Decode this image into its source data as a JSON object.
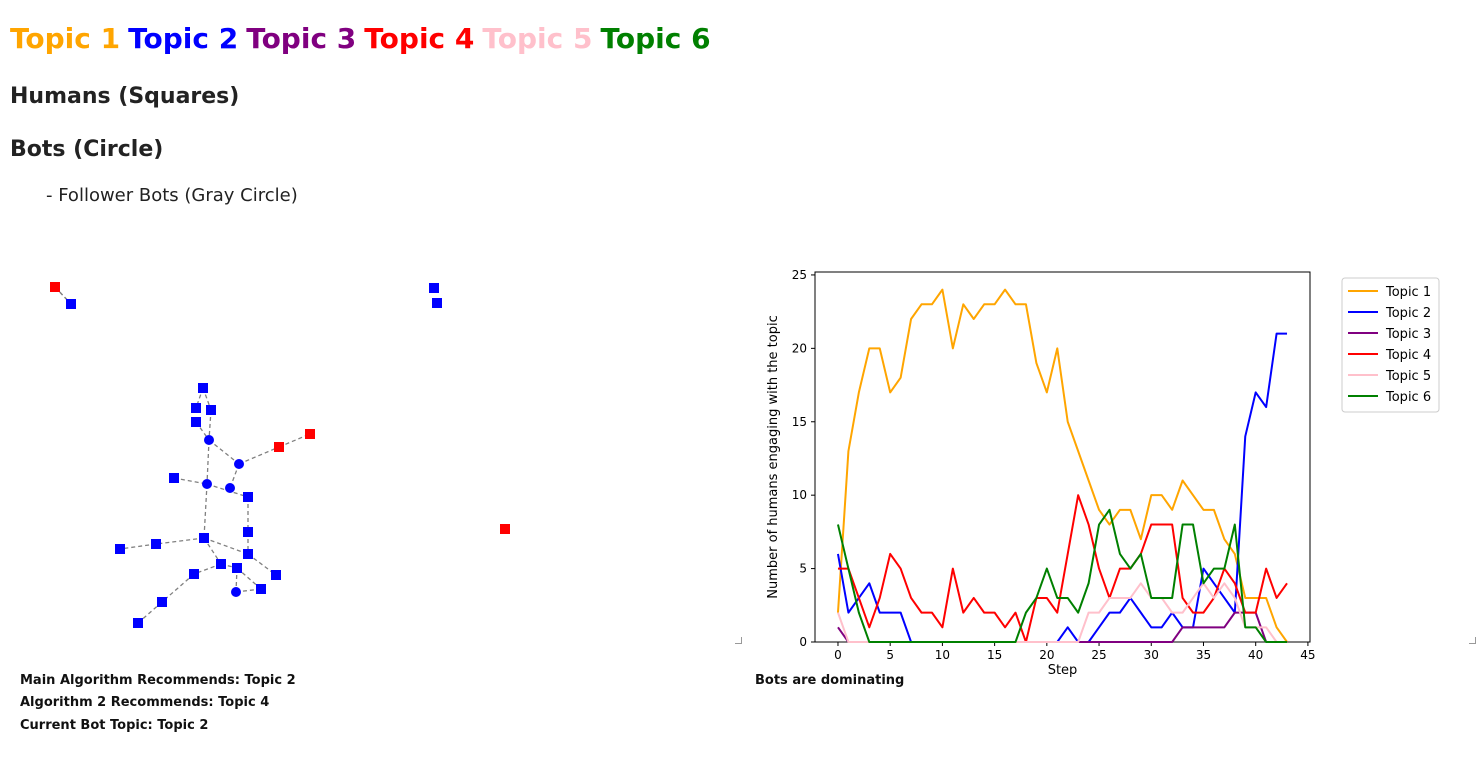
{
  "topics": [
    {
      "label": "Topic 1",
      "color": "#FFA500"
    },
    {
      "label": "Topic 2",
      "color": "#0000FF"
    },
    {
      "label": "Topic 3",
      "color": "#800080"
    },
    {
      "label": "Topic 4",
      "color": "#FF0000"
    },
    {
      "label": "Topic 5",
      "color": "#FFC0CB"
    },
    {
      "label": "Topic 6",
      "color": "#008000"
    }
  ],
  "headings": {
    "humans": "Humans (Squares)",
    "bots": "Bots (Circle)",
    "follower_bots": "- Follower Bots (Gray Circle)"
  },
  "status": {
    "main_algorithm": "Main Algorithm Recommends: Topic 2",
    "algorithm_2": "Algorithm 2 Recommends: Topic 4",
    "current_bot_topic": "Current Bot Topic: Topic 2",
    "dominance": "Bots are dominating"
  },
  "chart_data": {
    "type": "line",
    "xlabel": "Step",
    "ylabel": "Number of humans engaging with the topic",
    "xlim": [
      -2.2,
      45.2
    ],
    "ylim": [
      0,
      25.2
    ],
    "xticks": [
      0,
      5,
      10,
      15,
      20,
      25,
      30,
      35,
      40,
      45
    ],
    "yticks": [
      0,
      5,
      10,
      15,
      20,
      25
    ],
    "legend_position": "outside-right-top",
    "x": [
      0,
      1,
      2,
      3,
      4,
      5,
      6,
      7,
      8,
      9,
      10,
      11,
      12,
      13,
      14,
      15,
      16,
      17,
      18,
      19,
      20,
      21,
      22,
      23,
      24,
      25,
      26,
      27,
      28,
      29,
      30,
      31,
      32,
      33,
      34,
      35,
      36,
      37,
      38,
      39,
      40,
      41,
      42,
      43
    ],
    "series": [
      {
        "name": "Topic 1",
        "color": "#FFA500",
        "values": [
          2,
          13,
          17,
          20,
          20,
          17,
          18,
          22,
          23,
          23,
          24,
          20,
          23,
          22,
          23,
          23,
          24,
          23,
          23,
          19,
          17,
          20,
          15,
          13,
          11,
          9,
          8,
          9,
          9,
          7,
          10,
          10,
          9,
          11,
          10,
          9,
          9,
          7,
          6,
          3,
          3,
          3,
          1,
          0
        ]
      },
      {
        "name": "Topic 2",
        "color": "#0000FF",
        "values": [
          6,
          2,
          3,
          4,
          2,
          2,
          2,
          0,
          0,
          0,
          0,
          0,
          0,
          0,
          0,
          0,
          0,
          0,
          0,
          0,
          0,
          0,
          1,
          0,
          0,
          1,
          2,
          2,
          3,
          2,
          1,
          1,
          2,
          1,
          1,
          5,
          4,
          3,
          2,
          14,
          17,
          16,
          21,
          21
        ]
      },
      {
        "name": "Topic 3",
        "color": "#800080",
        "values": [
          1,
          0,
          0,
          0,
          0,
          0,
          0,
          0,
          0,
          0,
          0,
          0,
          0,
          0,
          0,
          0,
          0,
          0,
          0,
          0,
          0,
          0,
          0,
          0,
          0,
          0,
          0,
          0,
          0,
          0,
          0,
          0,
          0,
          1,
          1,
          1,
          1,
          1,
          2,
          2,
          2,
          0,
          0,
          0
        ]
      },
      {
        "name": "Topic 4",
        "color": "#FF0000",
        "values": [
          5,
          5,
          3,
          1,
          3,
          6,
          5,
          3,
          2,
          2,
          1,
          5,
          2,
          3,
          2,
          2,
          1,
          2,
          0,
          3,
          3,
          2,
          6,
          10,
          8,
          5,
          3,
          5,
          5,
          6,
          8,
          8,
          8,
          3,
          2,
          2,
          3,
          5,
          4,
          2,
          2,
          5,
          3,
          4
        ]
      },
      {
        "name": "Topic 5",
        "color": "#FFC0CB",
        "values": [
          2,
          0,
          0,
          0,
          0,
          0,
          0,
          0,
          0,
          0,
          0,
          0,
          0,
          0,
          0,
          0,
          0,
          0,
          0,
          0,
          0,
          0,
          0,
          0,
          2,
          2,
          3,
          3,
          3,
          4,
          3,
          3,
          2,
          2,
          3,
          4,
          3,
          4,
          3,
          1,
          1,
          1,
          0,
          0
        ]
      },
      {
        "name": "Topic 6",
        "color": "#008000",
        "values": [
          8,
          5,
          2,
          0,
          0,
          0,
          0,
          0,
          0,
          0,
          0,
          0,
          0,
          0,
          0,
          0,
          0,
          0,
          2,
          3,
          5,
          3,
          3,
          2,
          4,
          8,
          9,
          6,
          5,
          6,
          3,
          3,
          3,
          8,
          8,
          4,
          5,
          5,
          8,
          1,
          1,
          0,
          0,
          0
        ]
      }
    ]
  },
  "network": {
    "human_color": "#0000FF",
    "bot_color": "#0000FF",
    "highlight_color": "#FF0000",
    "edge_color": "#808080"
  }
}
